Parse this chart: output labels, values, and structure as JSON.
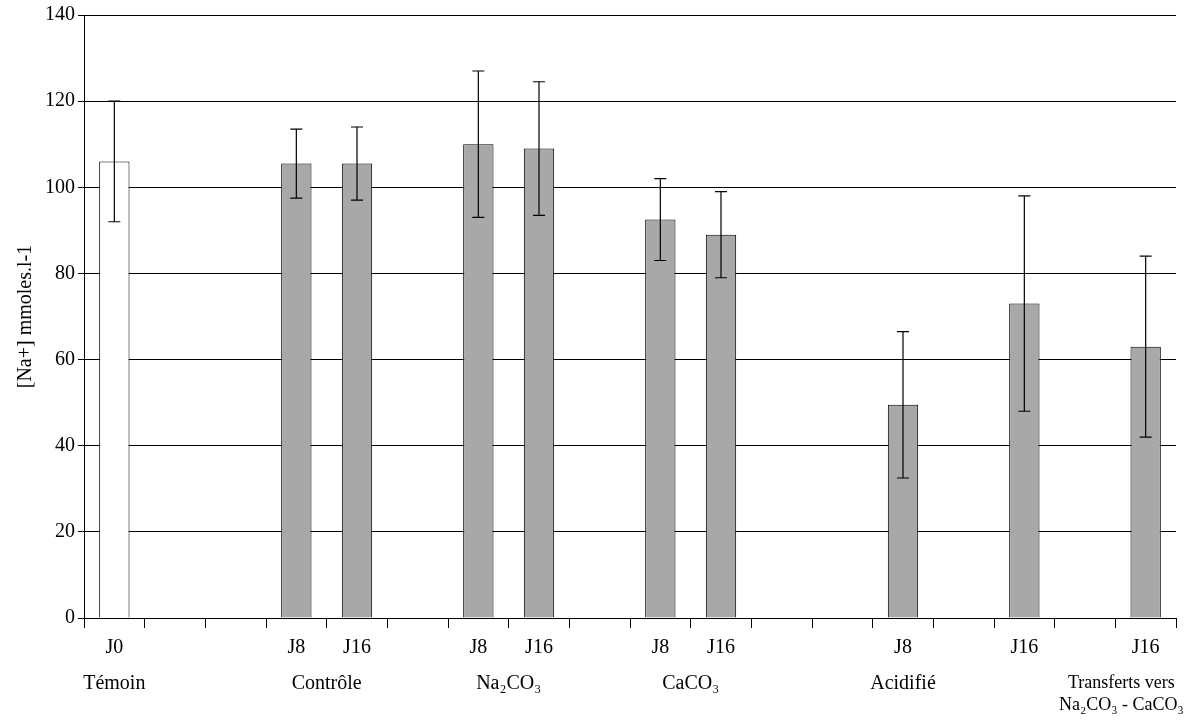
{
  "chart_data": {
    "type": "bar",
    "ylabel": "[Na+] mmoles.l-1",
    "categories": [
      "J0",
      null,
      null,
      "J8",
      "J16",
      null,
      "J8",
      "J16",
      null,
      "J8",
      "J16",
      null,
      null,
      "J8",
      null,
      "J16",
      null,
      "J16"
    ],
    "values": [
      106,
      null,
      null,
      105.5,
      105.5,
      null,
      110,
      109,
      null,
      92.5,
      89,
      null,
      null,
      49.5,
      null,
      73,
      null,
      63
    ],
    "errors": [
      14,
      null,
      null,
      8,
      8.5,
      null,
      17,
      15.5,
      null,
      9.5,
      10,
      null,
      null,
      17,
      null,
      25,
      null,
      21
    ],
    "colors": [
      "#ffffff",
      null,
      null,
      "#a8a8a8",
      "#a8a8a8",
      null,
      "#a8a8a8",
      "#a8a8a8",
      null,
      "#a8a8a8",
      "#a8a8a8",
      null,
      null,
      "#a8a8a8",
      null,
      "#a8a8a8",
      null,
      "#a8a8a8"
    ],
    "ylim": [
      0,
      140
    ],
    "yticks": [
      0,
      20,
      40,
      60,
      80,
      100,
      120,
      140
    ],
    "grid": "y",
    "legend": false,
    "annotations": [
      "Témoin",
      "Contrôle",
      "Na₂CO₃",
      "CaCO₃",
      "Acidifié",
      "Transferts vers\nNa₂CO₃ - CaCO₃"
    ]
  }
}
